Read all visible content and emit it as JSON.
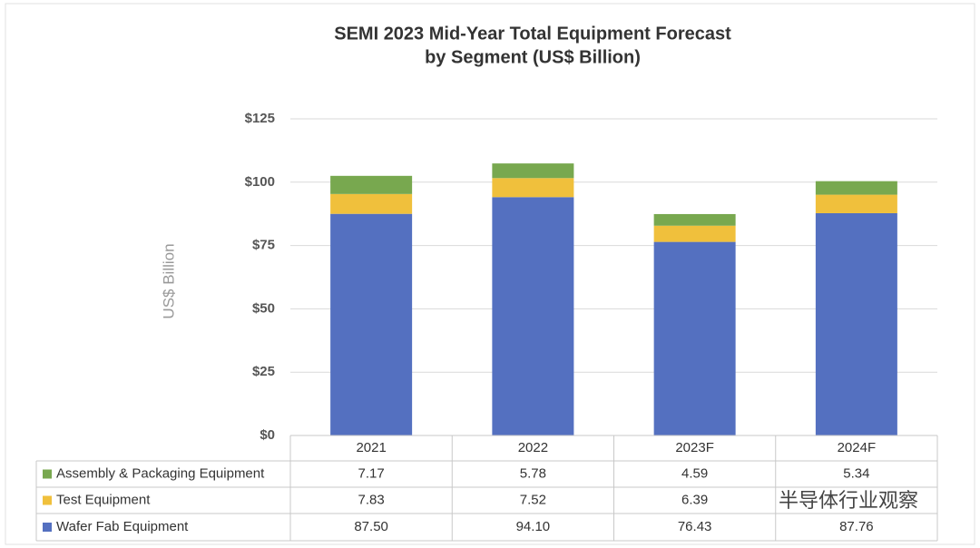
{
  "chart_data": {
    "type": "stacked_bar",
    "title": "SEMI 2023 Mid-Year Total Equipment Forecast",
    "subtitle": "by Segment (US$ Billion)",
    "y_axis_label": "US$ Billion",
    "categories": [
      "2021",
      "2022",
      "2023F",
      "2024F"
    ],
    "series": [
      {
        "name": "Wafer Fab Equipment",
        "color": "#5470c0",
        "values": [
          87.5,
          94.1,
          76.43,
          87.76
        ],
        "value_labels": [
          "87.50",
          "94.10",
          "76.43",
          "87.76"
        ]
      },
      {
        "name": "Test Equipment",
        "color": "#f0c03c",
        "values": [
          7.83,
          7.52,
          6.39,
          7.3
        ],
        "value_labels": [
          "7.83",
          "7.52",
          "6.39",
          null
        ]
      },
      {
        "name": "Assembly & Packaging Equipment",
        "color": "#78a84f",
        "values": [
          7.17,
          5.78,
          4.59,
          5.34
        ],
        "value_labels": [
          "7.17",
          "5.78",
          "4.59",
          "5.34"
        ]
      }
    ],
    "ylim": [
      0,
      125
    ],
    "yticks": [
      {
        "value": 0,
        "label": "$0"
      },
      {
        "value": 25,
        "label": "$25"
      },
      {
        "value": 50,
        "label": "$50"
      },
      {
        "value": 75,
        "label": "$75"
      },
      {
        "value": 100,
        "label": "$100"
      },
      {
        "value": 125,
        "label": "$125"
      }
    ],
    "grid": true,
    "watermark": "半导体行业观察"
  }
}
